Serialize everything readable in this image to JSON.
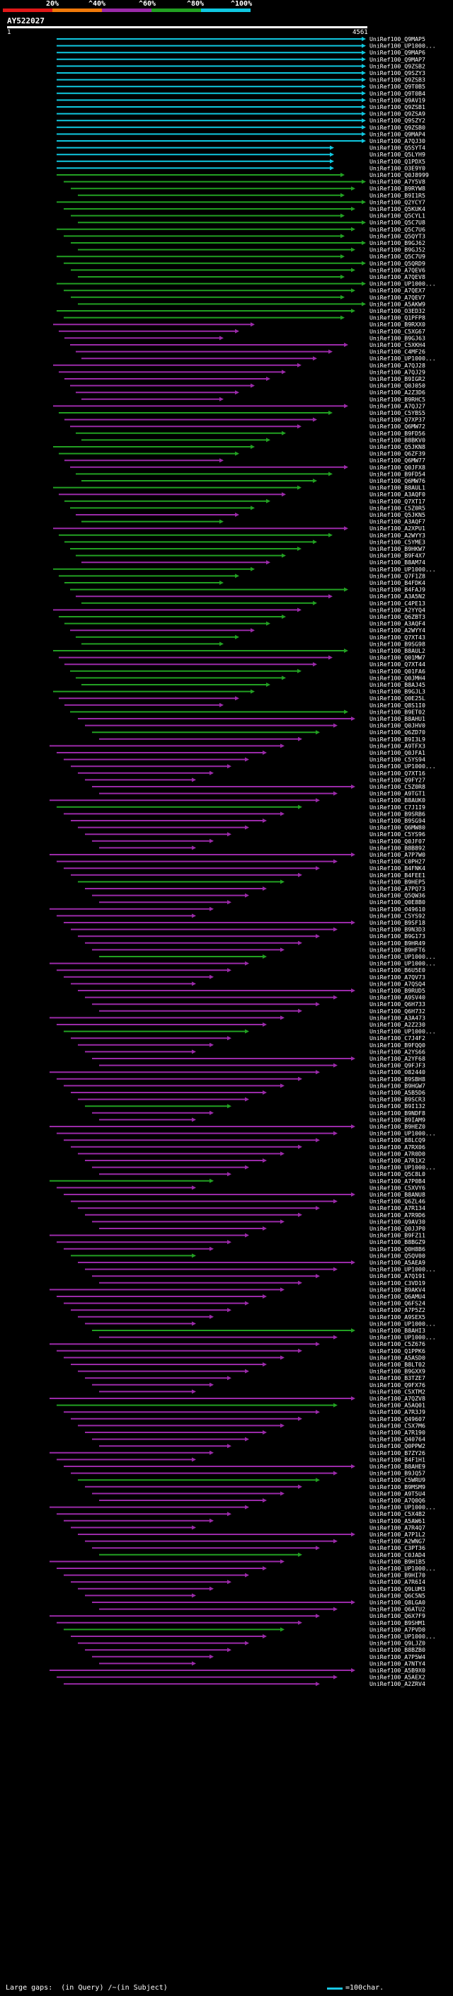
{
  "legend": {
    "labels": [
      "20%",
      "^40%",
      "^60%",
      "^80%",
      "^100%"
    ],
    "colors": [
      "#e01818",
      "#f07a0a",
      "#9a2aa8",
      "#22a022",
      "#10c8e0"
    ]
  },
  "query": {
    "title": "AY522027",
    "start": "1",
    "end": "4561"
  },
  "hit_names": [
    "UniRef100_Q9MAP5",
    "UniRef100_UP1000...",
    "UniRef100_Q9MAP6",
    "UniRef100_Q9MAP7",
    "UniRef100_Q9ZSB2",
    "UniRef100_Q9SZY3",
    "UniRef100_Q9ZSB3",
    "UniRef100_Q9T0B5",
    "UniRef100_Q9T0B4",
    "UniRef100_Q9AV19",
    "UniRef100_Q9ZSB1",
    "UniRef100_Q9ZSA9",
    "UniRef100_Q9SZY2",
    "UniRef100_Q9ZSB0",
    "UniRef100_Q9MAP4",
    "UniRef100_A7QJ30",
    "UniRef100_Q5SYT4",
    "UniRef100_Q5LYH9",
    "UniRef100_Q1PDX5",
    "UniRef100_O3E9Y0",
    "UniRef100_Q0J8999",
    "UniRef100_A7Y5V8",
    "UniRef100_B9RYW8",
    "UniRef100_B9I1R5",
    "UniRef100_Q2YCY7",
    "UniRef100_Q5KUK4",
    "UniRef100_Q5CYL1",
    "UniRef100_Q5C7U8",
    "UniRef100_Q5C7U6",
    "UniRef100_Q5QYT3",
    "UniRef100_B9GJ62",
    "UniRef100_B9GJ52",
    "UniRef100_Q5C7U9",
    "UniRef100_Q5QRD9",
    "UniRef100_A7QEV6",
    "UniRef100_A7QEV8",
    "UniRef100_UP1000...",
    "UniRef100_A7QEX7",
    "UniRef100_A7QEV7",
    "UniRef100_A5AKW9",
    "UniRef100_O3ED32",
    "UniRef100_Q1PFP8",
    "UniRef100_B9RXX0",
    "UniRef100_C5XG67",
    "UniRef100_B9GJ63",
    "UniRef100_C5XKH4",
    "UniRef100_C4MF26",
    "UniRef100_UP1000...",
    "UniRef100_A7QJ28",
    "UniRef100_A7QJ29",
    "UniRef100_B9IGR2",
    "UniRef100_Q0J050",
    "UniRef100_A2Z3D6",
    "UniRef100_B9RHC5",
    "UniRef100_A7QJ27",
    "UniRef100_C5YBS5",
    "UniRef100_Q7XP37",
    "UniRef100_Q6MW72",
    "UniRef100_B9FD56",
    "UniRef100_B8BKV0",
    "UniRef100_Q5JKN8",
    "UniRef100_Q6ZF39",
    "UniRef100_Q6MW77",
    "UniRef100_Q0JFX8",
    "UniRef100_B9FD54",
    "UniRef100_Q6MW76",
    "UniRef100_B8AUL1",
    "UniRef100_A3AQF0",
    "UniRef100_Q7XT17",
    "UniRef100_C5Z0R5",
    "UniRef100_Q5JKN5",
    "UniRef100_A3AQF7",
    "UniRef100_A2XPU1",
    "UniRef100_A2WYY3",
    "UniRef100_C5YME3",
    "UniRef100_B9HKW7",
    "UniRef100_B9F4X7",
    "UniRef100_B8AM74",
    "UniRef100_UP1000...",
    "UniRef100_Q7F1Z8",
    "UniRef100_B4FDK4",
    "UniRef100_B4FAJ9",
    "UniRef100_A3A5N2",
    "UniRef100_C4PE13",
    "UniRef100_A2YYQ4",
    "UniRef100_Q6ZBT3",
    "UniRef100_A3AQF4",
    "UniRef100_A2WYY4",
    "UniRef100_Q7XT43",
    "UniRef100_B9SG98",
    "UniRef100_B8AUL2",
    "UniRef100_Q01MW7",
    "UniRef100_Q7XT44",
    "UniRef100_Q01FA6",
    "UniRef100_Q0JMH4",
    "UniRef100_B8AJ45",
    "UniRef100_B9GJL3",
    "UniRef100_Q0E25L",
    "UniRef100_Q8S1I0",
    "UniRef100_B9ET02",
    "UniRef100_B8AHU1",
    "UniRef100_Q0JHV0",
    "UniRef100_Q6ZD70",
    "UniRef100_B9I3L9",
    "UniRef100_A9TFX3",
    "UniRef100_Q0JFA1",
    "UniRef100_C5YS94",
    "UniRef100_UP1000...",
    "UniRef100_Q7XT16",
    "UniRef100_Q9FY27",
    "UniRef100_C5Z0R8",
    "UniRef100_A9TGT1",
    "UniRef100_B8AUK0",
    "UniRef100_C7J1I9",
    "UniRef100_B9SRB6",
    "UniRef100_B9SG94",
    "UniRef100_Q6MW80",
    "UniRef100_C5YS96",
    "UniRef100_Q0JF07",
    "UniRef100_B8B892",
    "UniRef100_A7P7W0",
    "UniRef100_C0PH27",
    "UniRef100_B4FNK4",
    "UniRef100_B4FEE1",
    "UniRef100_B9HEP5",
    "UniRef100_A7PQ73",
    "UniRef100_Q5QW36",
    "UniRef100_Q0E8B0",
    "UniRef100_O49610",
    "UniRef100_C5YS92",
    "UniRef100_B9SF18",
    "UniRef100_B9N3D3",
    "UniRef100_B9G173",
    "UniRef100_B9HR49",
    "UniRef100_B9HFT6",
    "UniRef100_UP1000...",
    "UniRef100_UP1000...",
    "UniRef100_B6U5E0",
    "UniRef100_A7QV73",
    "UniRef100_A7QSQ4",
    "UniRef100_B9RUD5",
    "UniRef100_A9SV40",
    "UniRef100_Q6H733",
    "UniRef100_Q6H732",
    "UniRef100_A3A473",
    "UniRef100_A2Z230",
    "UniRef100_UP1000...",
    "UniRef100_C7J4F2",
    "UniRef100_B9FQQ0",
    "UniRef100_A2YS66",
    "UniRef100_A2YF68",
    "UniRef100_Q9FJF3",
    "UniRef100_O82440",
    "UniRef100_B9SBH8",
    "UniRef100_B9HGW7",
    "UniRef100_A5B5D6",
    "UniRef100_B9SCR3",
    "UniRef100_B9I132",
    "UniRef100_B9NDF8",
    "UniRef100_B9IAM9",
    "UniRef100_B9HEZ0",
    "UniRef100_UP1000...",
    "UniRef100_B8LCQ9",
    "UniRef100_A7RX06",
    "UniRef100_A7R0D0",
    "UniRef100_A7R1X2",
    "UniRef100_UP1000...",
    "UniRef100_Q5C8L0",
    "UniRef100_A7P0B4",
    "UniRef100_C5XVY6",
    "UniRef100_B8ANU8",
    "UniRef100_Q6ZL46",
    "UniRef100_A7R134",
    "UniRef100_A7R9D6",
    "UniRef100_Q9AV30",
    "UniRef100_Q0JJP0",
    "UniRef100_B9FZ11",
    "UniRef100_B8BGZ9",
    "UniRef100_Q0H8B6",
    "UniRef100_Q5QV00",
    "UniRef100_A5AEA9",
    "UniRef100_UP1000...",
    "UniRef100_A7Q191",
    "UniRef100_C3VD19",
    "UniRef100_B9AKV4",
    "UniRef100_Q6AMU4",
    "UniRef100_Q6FS24",
    "UniRef100_A7P5Z2",
    "UniRef100_A9SEX5",
    "UniRef100_UP1000...",
    "UniRef100_B8AHI3",
    "UniRef100_UP1000...",
    "UniRef100_C5Z676",
    "UniRef100_Q1PPK6",
    "UniRef100_A5ASD0",
    "UniRef100_B8LT02",
    "UniRef100_B9GXX9",
    "UniRef100_B3TZE7",
    "UniRef100_Q9FX76",
    "UniRef100_C5XTM2",
    "UniRef100_A7QZV8",
    "UniRef100_A5AQ01",
    "UniRef100_A7R3J9",
    "UniRef100_Q49607",
    "UniRef100_C5X7M6",
    "UniRef100_A7R190",
    "UniRef100_Q40764",
    "UniRef100_Q0PPW2",
    "UniRef100_B7ZY26",
    "UniRef100_B4F1H1",
    "UniRef100_B8AHE9",
    "UniRef100_B9JQ57",
    "UniRef100_C5WRU9",
    "UniRef100_B9MSM9",
    "UniRef100_A9T5U4",
    "UniRef100_A7Q0Q6",
    "UniRef100_UP1000...",
    "UniRef100_C5X4B2",
    "UniRef100_A5AW61",
    "UniRef100_A7R4Q7",
    "UniRef100_A7P1L2",
    "UniRef100_A2WNG7",
    "UniRef100_C3PT36",
    "UniRef100_C0JAD4",
    "UniRef100_B9H1B5",
    "UniRef100_UP1000...",
    "UniRef100_B9HI70",
    "UniRef100_A7R6I4",
    "UniRef100_Q9LUM3",
    "UniRef100_Q6C5N5",
    "UniRef100_Q8LGA0",
    "UniRef100_Q6ATU2",
    "UniRef100_Q6X7F9",
    "UniRef100_B9SHM1",
    "UniRef100_A7PVD0",
    "UniRef100_UP1000...",
    "UniRef100_Q9LJZ0",
    "UniRef100_B8BZB0",
    "UniRef100_A7P5W4",
    "UniRef100_A7NTY4",
    "UniRef100_A5B9X0",
    "UniRef100_A5AEX2",
    "UniRef100_A2ZRV4"
  ],
  "footer": {
    "large_gaps": "Large gaps:",
    "in_query": "(in Query)",
    "in_subject": "/~(in Subject)",
    "scale": "=100char."
  }
}
